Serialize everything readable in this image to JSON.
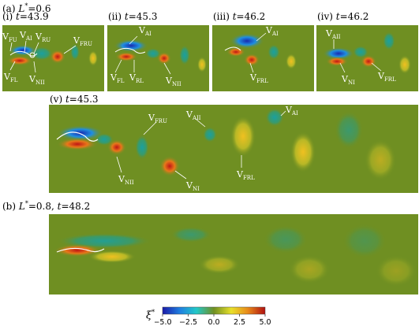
{
  "section_a": {
    "prefix": "(a) ",
    "var": "L",
    "sup": "*",
    "eq": "=0.6"
  },
  "section_b": {
    "prefix": "(b) ",
    "var": "L",
    "sup": "*",
    "eq": "=0.8,  ",
    "tvar": "t",
    "tval": "=48.2"
  },
  "panels": [
    {
      "id": "i",
      "label": "(i) ",
      "tvar": "t",
      "tval": "=43.9"
    },
    {
      "id": "ii",
      "label": "(ii) ",
      "tvar": "t",
      "tval": "=45.3"
    },
    {
      "id": "iii",
      "label": "(iii) ",
      "tvar": "t",
      "tval": "=46.2"
    },
    {
      "id": "iv",
      "label": "(iv) ",
      "tvar": "t",
      "tval": "=46.2"
    },
    {
      "id": "v",
      "label": "(v) ",
      "tvar": "t",
      "tval": "=45.3"
    }
  ],
  "annotations": {
    "i": [
      {
        "main": "V",
        "sub": "FU"
      },
      {
        "main": "V",
        "sub": "AI"
      },
      {
        "main": "V",
        "sub": "RU"
      },
      {
        "main": "V",
        "sub": "FRU"
      },
      {
        "main": "V",
        "sub": "FL"
      },
      {
        "main": "V",
        "sub": "NII"
      }
    ],
    "ii": [
      {
        "main": "V",
        "sub": "AI"
      },
      {
        "main": "V",
        "sub": "FL"
      },
      {
        "main": "V",
        "sub": "RL"
      },
      {
        "main": "V",
        "sub": "NII"
      }
    ],
    "iii": [
      {
        "main": "V",
        "sub": "AI"
      },
      {
        "main": "V",
        "sub": "FRL"
      }
    ],
    "iv": [
      {
        "main": "V",
        "sub": "AII"
      },
      {
        "main": "V",
        "sub": "NI"
      },
      {
        "main": "V",
        "sub": "FRL"
      }
    ],
    "v": [
      {
        "main": "V",
        "sub": "FRU"
      },
      {
        "main": "V",
        "sub": "AII"
      },
      {
        "main": "V",
        "sub": "AI"
      },
      {
        "main": "V",
        "sub": "NII"
      },
      {
        "main": "V",
        "sub": "NI"
      },
      {
        "main": "V",
        "sub": "FRL"
      }
    ]
  },
  "colorbar": {
    "label": "ξ",
    "label_sup": "*",
    "ticks": [
      "−5.0",
      "−2.5",
      "0.0",
      "2.5",
      "5.0"
    ],
    "range": [
      -5.0,
      5.0
    ],
    "colors": [
      "#1a1aa8",
      "#1f7fe0",
      "#22c8c8",
      "#6f8f22",
      "#e8e02a",
      "#e88a1a",
      "#b01010"
    ]
  }
}
